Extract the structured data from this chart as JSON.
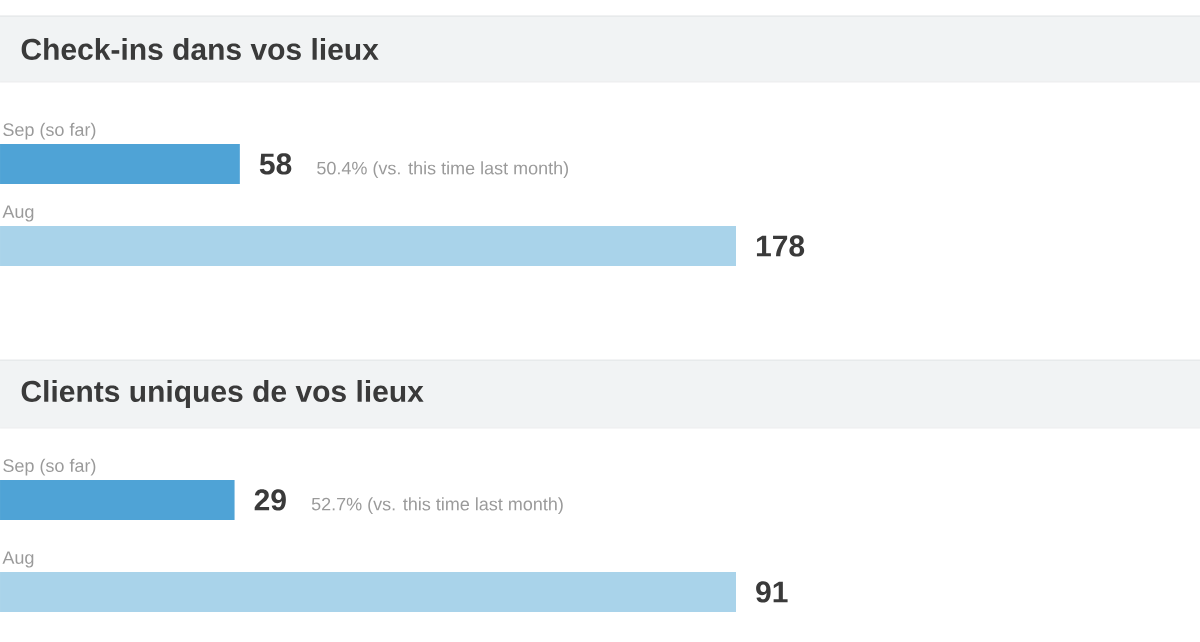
{
  "chart_data": [
    {
      "type": "bar",
      "orientation": "horizontal",
      "title": "Check-ins dans vos lieux",
      "categories": [
        "Sep (so far)",
        "Aug"
      ],
      "values": [
        58,
        178
      ],
      "colors": [
        "#4fa3d6",
        "#a9d3ea"
      ],
      "data_labels": true,
      "annotations": [
        "50.4% (vs. this time last month)"
      ]
    },
    {
      "type": "bar",
      "orientation": "horizontal",
      "title": "Clients uniques de vos lieux",
      "categories": [
        "Sep (so far)",
        "Aug"
      ],
      "values": [
        29,
        91
      ],
      "colors": [
        "#4fa3d6",
        "#a9d3ea"
      ],
      "data_labels": true,
      "annotations": [
        "52.7% (vs. this time last month)"
      ]
    }
  ]
}
